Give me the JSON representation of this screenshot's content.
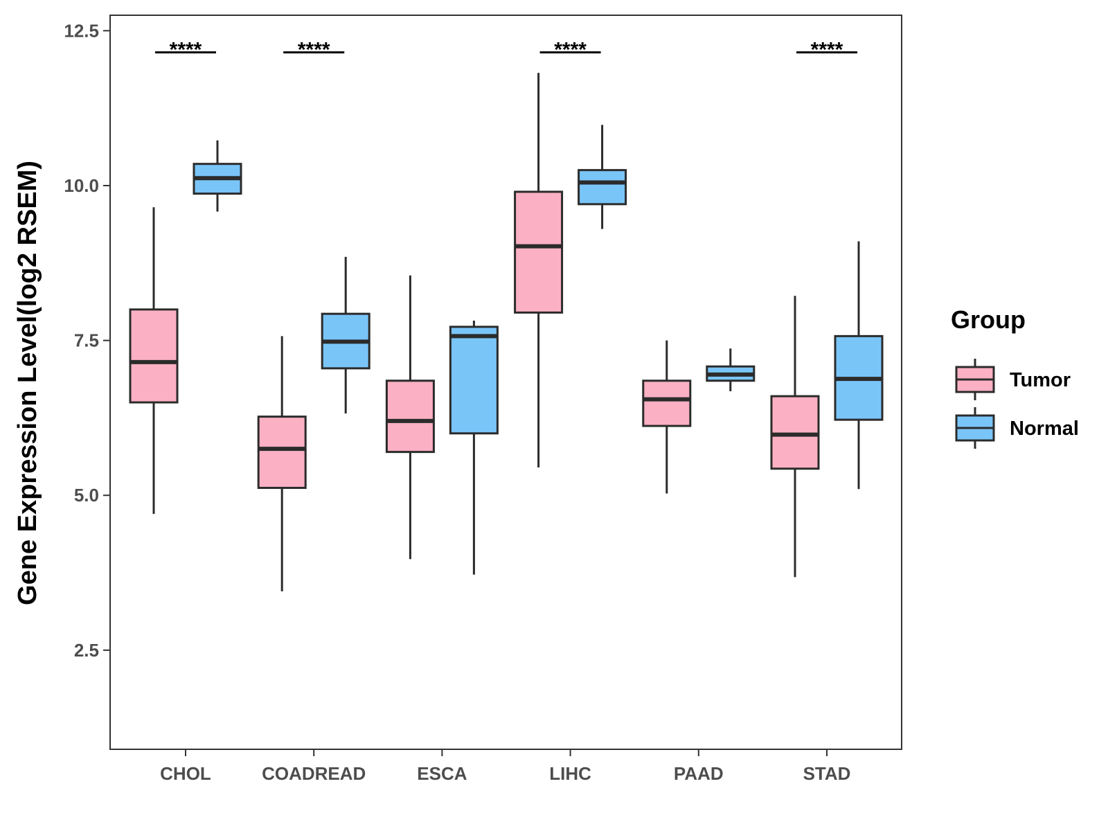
{
  "chart_data": {
    "type": "boxplot",
    "title": "",
    "xlabel": "",
    "ylabel": "Gene Expression Level(log2 RSEM)",
    "ylim": [
      0.9,
      12.75
    ],
    "yticks": [
      2.5,
      5.0,
      7.5,
      10.0,
      12.5
    ],
    "ytick_labels": [
      "2.5",
      "5.0",
      "7.5",
      "10.0",
      "12.5"
    ],
    "grid": false,
    "legend": {
      "title": "Group",
      "position": "right"
    },
    "categories": [
      "CHOL",
      "COADREAD",
      "ESCA",
      "LIHC",
      "PAAD",
      "STAD"
    ],
    "series": [
      {
        "name": "Tumor",
        "color": "#FBB1C3",
        "boxes": [
          {
            "whisker_low": 4.7,
            "q1": 6.5,
            "median": 7.15,
            "q3": 8.0,
            "whisker_high": 9.65
          },
          {
            "whisker_low": 3.45,
            "q1": 5.12,
            "median": 5.75,
            "q3": 6.27,
            "whisker_high": 7.57
          },
          {
            "whisker_low": 3.97,
            "q1": 5.7,
            "median": 6.2,
            "q3": 6.85,
            "whisker_high": 8.55
          },
          {
            "whisker_low": 5.45,
            "q1": 7.95,
            "median": 9.02,
            "q3": 9.9,
            "whisker_high": 11.82
          },
          {
            "whisker_low": 5.03,
            "q1": 6.12,
            "median": 6.55,
            "q3": 6.85,
            "whisker_high": 7.5
          },
          {
            "whisker_low": 3.68,
            "q1": 5.43,
            "median": 5.98,
            "q3": 6.6,
            "whisker_high": 8.22
          }
        ]
      },
      {
        "name": "Normal",
        "color": "#7AC5F8",
        "boxes": [
          {
            "whisker_low": 9.58,
            "q1": 9.87,
            "median": 10.12,
            "q3": 10.35,
            "whisker_high": 10.73
          },
          {
            "whisker_low": 6.32,
            "q1": 7.05,
            "median": 7.48,
            "q3": 7.93,
            "whisker_high": 8.85
          },
          {
            "whisker_low": 3.72,
            "q1": 6.0,
            "median": 7.57,
            "q3": 7.72,
            "whisker_high": 7.82
          },
          {
            "whisker_low": 9.3,
            "q1": 9.7,
            "median": 10.05,
            "q3": 10.25,
            "whisker_high": 10.98
          },
          {
            "whisker_low": 6.68,
            "q1": 6.85,
            "median": 6.95,
            "q3": 7.08,
            "whisker_high": 7.37
          },
          {
            "whisker_low": 5.1,
            "q1": 6.22,
            "median": 6.88,
            "q3": 7.57,
            "whisker_high": 9.1
          }
        ]
      }
    ],
    "significance": [
      {
        "category": "CHOL",
        "label": "****"
      },
      {
        "category": "COADREAD",
        "label": "****"
      },
      {
        "category": "LIHC",
        "label": "****"
      },
      {
        "category": "STAD",
        "label": "****"
      }
    ],
    "significance_bar_y": 12.15
  }
}
